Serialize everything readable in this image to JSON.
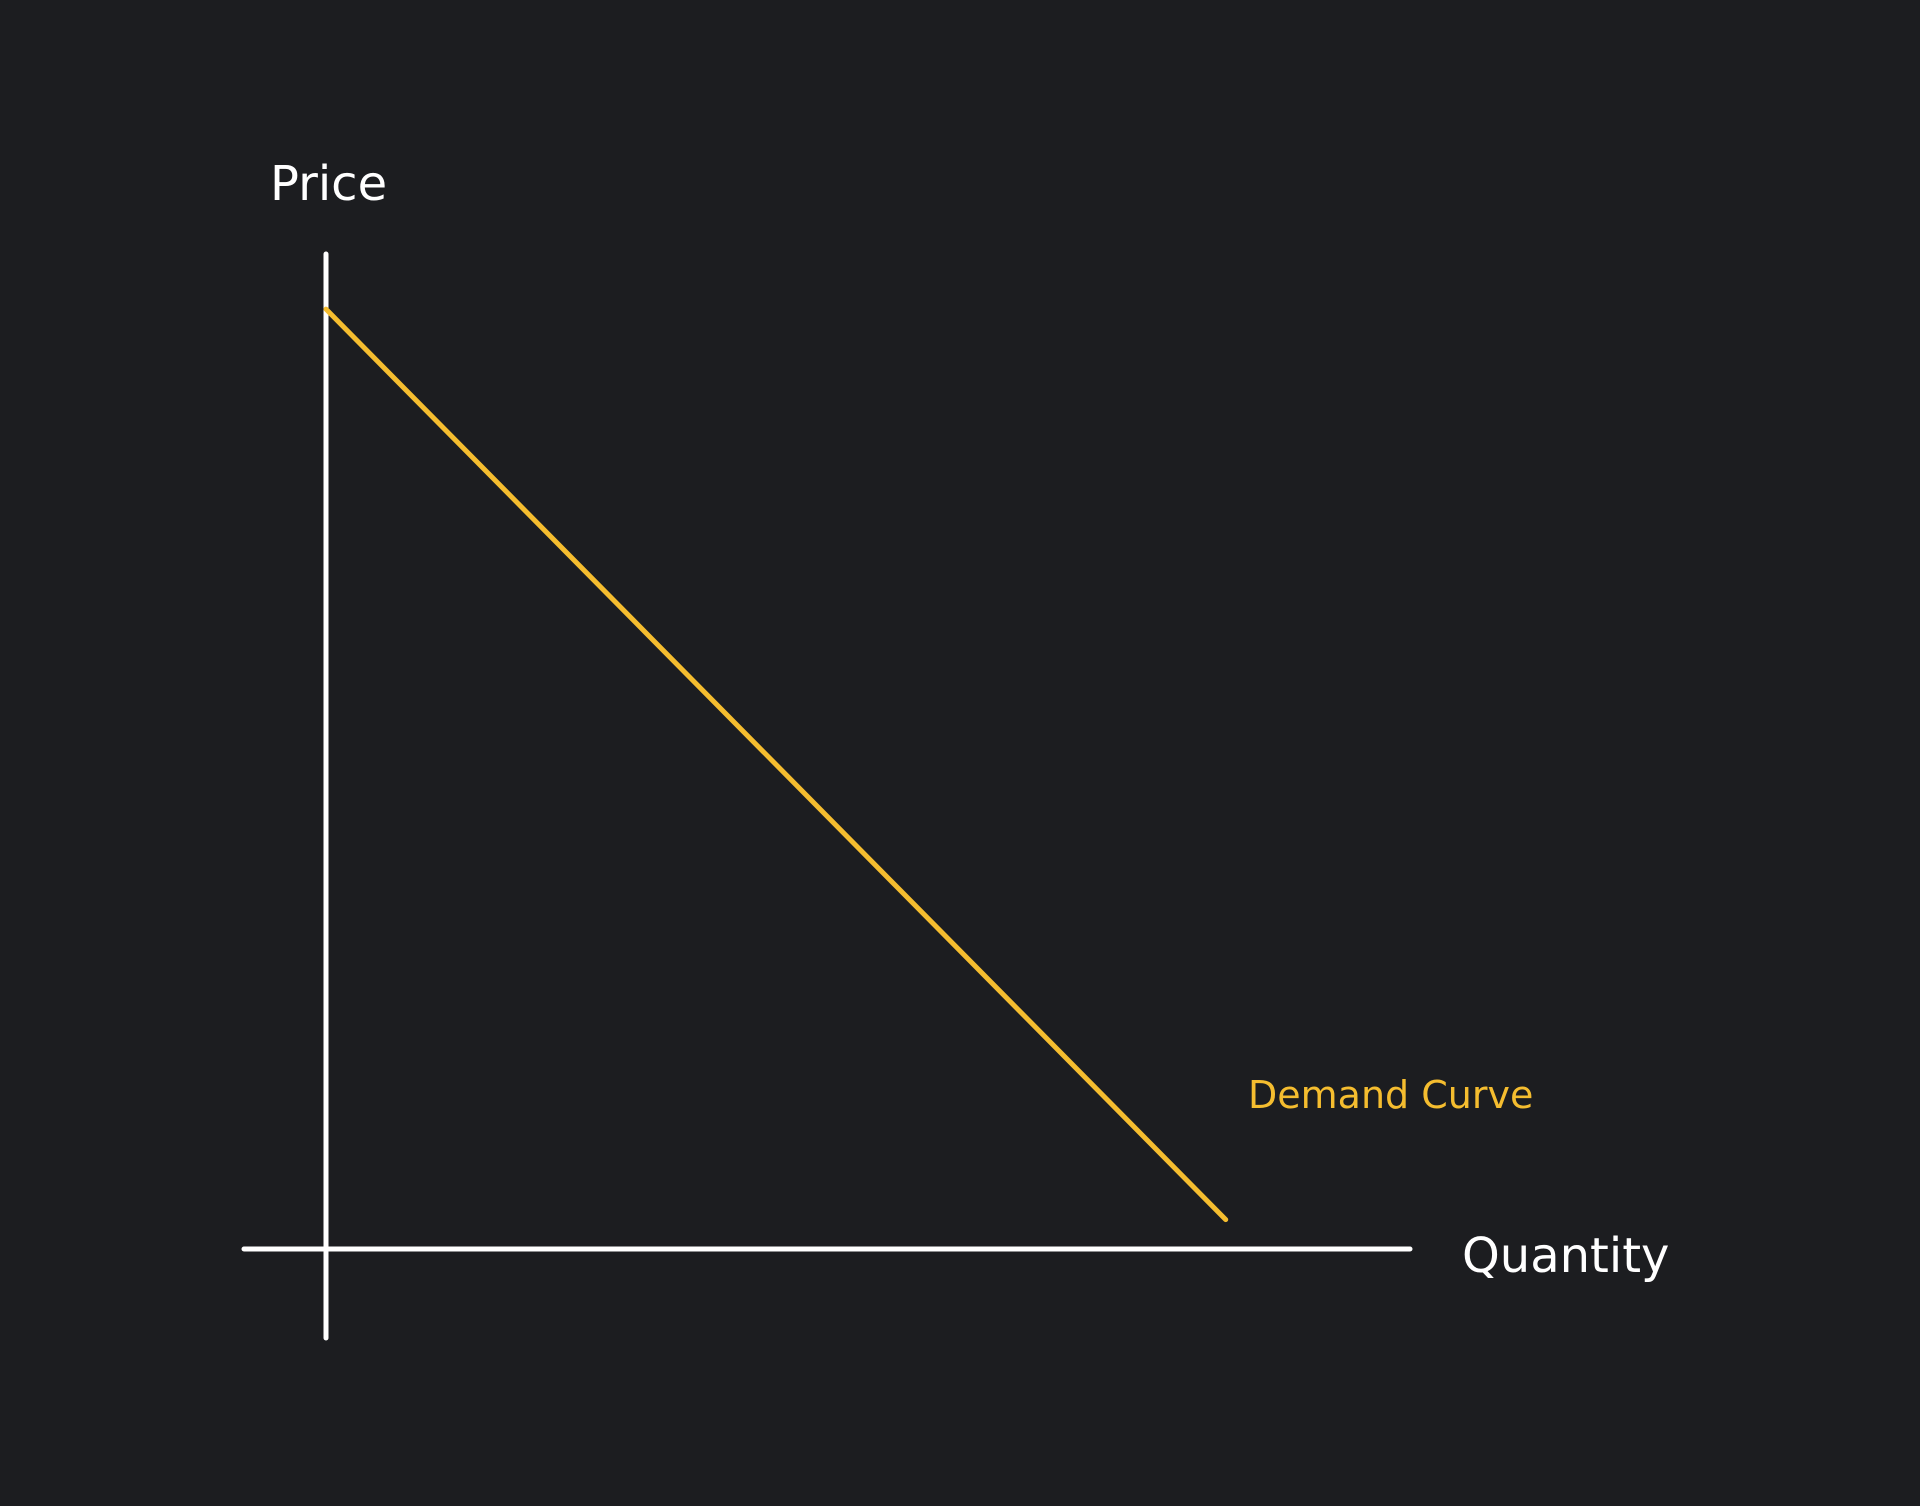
{
  "chart_data": {
    "type": "line",
    "title": "",
    "xlabel": "Quantity",
    "ylabel": "Price",
    "xlim": [
      0,
      1
    ],
    "ylim": [
      0,
      1
    ],
    "grid": false,
    "series": [
      {
        "name": "Demand Curve",
        "color": "#f5bd2f",
        "x": [
          0,
          0.83
        ],
        "y": [
          0.96,
          0.03
        ]
      }
    ],
    "colors": {
      "background": "#1c1d20",
      "axes": "#ffffff",
      "curve": "#f5bd2f"
    }
  }
}
